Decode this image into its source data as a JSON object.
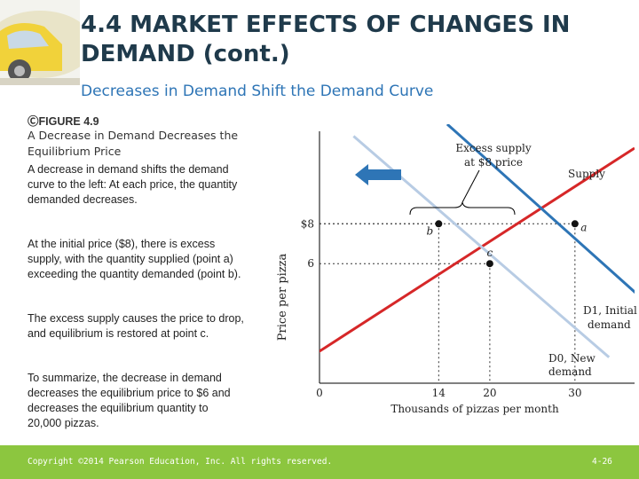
{
  "slide": {
    "title_line1": "4.4 MARKET EFFECTS OF CHANGES IN",
    "title_line2": "DEMAND (cont.)",
    "subtitle": "Decreases in Demand Shift the Demand Curve",
    "figure_label": "ⒸFIGURE 4.9",
    "figure_title": "A Decrease in Demand Decreases the Equilibrium Price",
    "paragraphs": [
      "A decrease in demand shifts the demand curve to the left: At each price, the quantity demanded decreases.",
      "At the initial price ($8), there is excess supply, with the quantity supplied (point a) exceeding the quantity demanded (point b).",
      "The excess supply causes the price to drop, and equilibrium is restored at point c.",
      "To summarize, the decrease in demand decreases the equilibrium price to $6 and decreases the equilibrium quantity to 20,000 pizzas."
    ],
    "copyright": "Copyright ©2014 Pearson Education, Inc. All rights reserved.",
    "page_number": "4-26",
    "colors": {
      "title": "#1f3a4b",
      "subtitle": "#2e75b6",
      "footer": "#8cc63f",
      "supply": "#d62728",
      "d1": "#2e75b6",
      "d0": "#b8cce4",
      "arrow": "#2e75b6"
    },
    "icons": [
      "left-arrow-icon",
      "decorative-car-image"
    ]
  },
  "chart_data": {
    "type": "line",
    "ylabel": "Price per pizza",
    "xlabel": "Thousands of pizzas per month",
    "xlim": [
      0,
      37
    ],
    "ylim": [
      0,
      13
    ],
    "y_ticks": [
      {
        "value": 8,
        "label": "$8"
      },
      {
        "value": 6,
        "label": "6"
      }
    ],
    "x_ticks": [
      {
        "value": 0,
        "label": "0"
      },
      {
        "value": 14,
        "label": "14"
      },
      {
        "value": 20,
        "label": "20"
      },
      {
        "value": 30,
        "label": "30"
      }
    ],
    "series": [
      {
        "name": "Supply",
        "key": "supply",
        "points": [
          [
            -4,
            0.5
          ],
          [
            37,
            11.8
          ]
        ]
      },
      {
        "name": "D1, Initial demand",
        "key": "d1",
        "points": [
          [
            15,
            13
          ],
          [
            38,
            4.2
          ]
        ]
      },
      {
        "name": "D0, New demand",
        "key": "d0",
        "points": [
          [
            4,
            12.4
          ],
          [
            34,
            1.3
          ]
        ]
      }
    ],
    "series_labels": {
      "supply": "Supply",
      "d1_line1": "D1, Initial",
      "d1_line2": "demand",
      "d0_line1": "D0, New",
      "d0_line2": "demand"
    },
    "points": [
      {
        "label": "a",
        "x": 30,
        "y": 8
      },
      {
        "label": "b",
        "x": 14,
        "y": 8
      },
      {
        "label": "c",
        "x": 20,
        "y": 6
      }
    ],
    "annotation": {
      "line1": "Excess supply",
      "line2": "at $8 price"
    }
  }
}
